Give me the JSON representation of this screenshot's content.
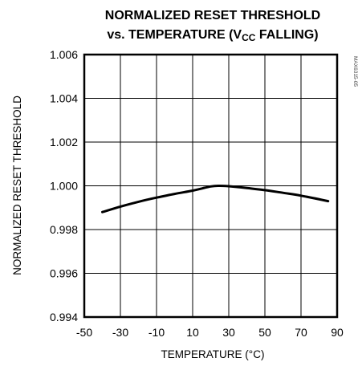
{
  "chart_data": {
    "type": "line",
    "title_line1": "NORMALIZED RESET THRESHOLD",
    "title_line2_prefix": "vs. TEMPERATURE (V",
    "title_line2_sub": "CC",
    "title_line2_suffix": " FALLING)",
    "xlabel": "TEMPERATURE (°C)",
    "ylabel": "NORMALIZED RESET THRESHOLD",
    "figure_code": "MAX6315-05",
    "xlim": [
      -50,
      90
    ],
    "ylim": [
      0.994,
      1.006
    ],
    "x_ticks": [
      -50,
      -30,
      -10,
      10,
      30,
      50,
      70,
      90
    ],
    "x_tick_labels": [
      "-50",
      "-30",
      "-10",
      "10",
      "30",
      "50",
      "70",
      "90"
    ],
    "y_ticks": [
      0.994,
      0.996,
      0.998,
      1.0,
      1.002,
      1.004,
      1.006
    ],
    "y_tick_labels": [
      "0.994",
      "0.996",
      "0.998",
      "1.000",
      "1.002",
      "1.004",
      "1.006"
    ],
    "grid": true,
    "series": [
      {
        "x": [
          -40,
          -30,
          -20,
          -10,
          0,
          10,
          20,
          25,
          30,
          40,
          50,
          60,
          70,
          85
        ],
        "y": [
          0.9988,
          0.99905,
          0.99927,
          0.99946,
          0.99963,
          0.99978,
          0.99997,
          1.0,
          0.99998,
          0.9999,
          0.9998,
          0.99968,
          0.99955,
          0.9993
        ]
      }
    ]
  }
}
